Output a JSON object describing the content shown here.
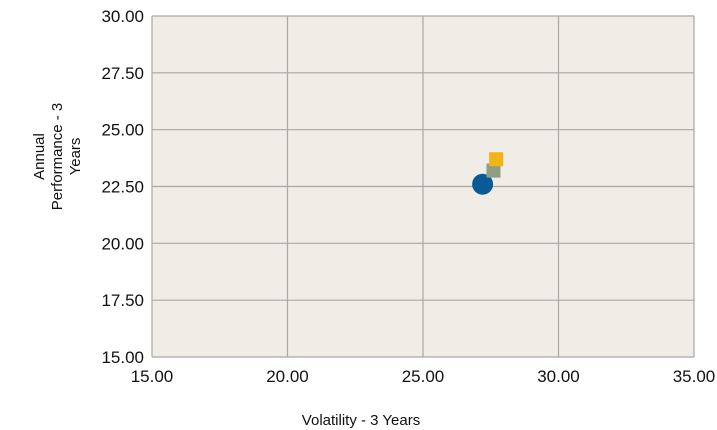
{
  "chart_data": {
    "type": "scatter",
    "title": "",
    "xlabel": "Volatility - 3 Years",
    "ylabel_lines": [
      "Annual",
      "Performance - 3",
      "Years"
    ],
    "xlim": [
      15,
      35
    ],
    "ylim": [
      15,
      30
    ],
    "x_ticks": [
      "15.00",
      "20.00",
      "25.00",
      "30.00",
      "35.00"
    ],
    "y_ticks": [
      "30.00",
      "27.50",
      "25.00",
      "22.50",
      "20.00",
      "17.50",
      "15.00"
    ],
    "x_tick_values": [
      15,
      20,
      25,
      30,
      35
    ],
    "y_tick_values": [
      30,
      27.5,
      25,
      22.5,
      20,
      17.5,
      15
    ],
    "grid": true,
    "plot_background": "#efede6",
    "grid_color": "#a8a8a8",
    "series": [
      {
        "shape": "circle",
        "color": "#0a5a96",
        "x": 27.2,
        "y": 22.6
      },
      {
        "shape": "square",
        "color": "#8d9e83",
        "x": 27.6,
        "y": 23.2
      },
      {
        "shape": "square",
        "color": "#f2b417",
        "x": 27.7,
        "y": 23.7
      }
    ]
  }
}
